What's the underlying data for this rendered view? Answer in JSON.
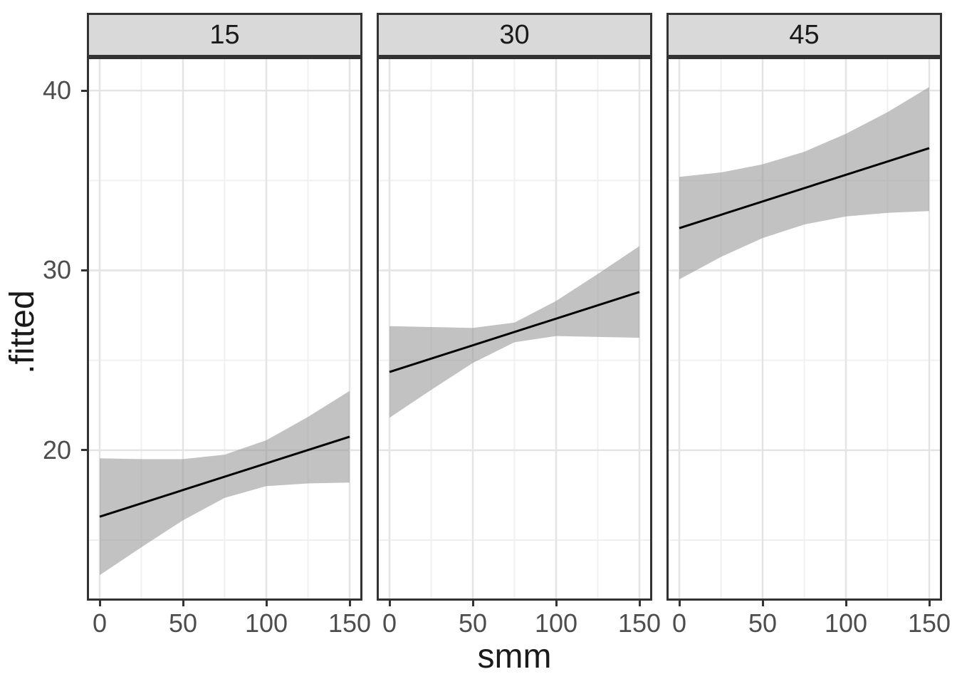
{
  "figure": {
    "background": "#ffffff"
  },
  "colors": {
    "strip_fill": "#d9d9d9",
    "strip_border": "#333333",
    "panel_border": "#333333",
    "panel_background": "#ffffff",
    "grid_major": "#e4e4e4",
    "grid_minor": "#f0f0f0",
    "ribbon": "#999999",
    "ribbon_opacity": 0.6,
    "fit_line": "#000000",
    "tick_mark": "#333333",
    "tick_label": "#4d4d4d",
    "axis_title": "#1a1a1a",
    "strip_text": "#1a1a1a"
  },
  "chart_data": {
    "type": "line",
    "title": "",
    "xlabel": "smm",
    "ylabel": ".fitted",
    "grid": true,
    "legend": "none",
    "has_confidence_band": true,
    "faceting": {
      "variable_values": [
        "15",
        "30",
        "45"
      ],
      "strip_position": "top"
    },
    "xlim": [
      0,
      150
    ],
    "ylim_display": [
      11.75,
      41.75
    ],
    "x_ticks": [
      0,
      50,
      100,
      150
    ],
    "y_ticks": [
      20,
      30,
      40
    ],
    "x_minor_gridlines": [
      25,
      75,
      125
    ],
    "y_minor_gridlines": [
      15,
      25,
      35
    ],
    "band_sample_x": [
      0,
      25,
      50,
      75,
      100,
      125,
      150
    ],
    "facets": [
      {
        "label": "15",
        "fit_line": {
          "x": [
            0,
            150
          ],
          "y": [
            16.3,
            20.75
          ]
        },
        "band_upper": [
          19.55,
          19.5,
          19.5,
          19.75,
          20.55,
          21.85,
          23.3
        ],
        "band_lower": [
          13.05,
          14.6,
          16.1,
          17.35,
          18.0,
          18.15,
          18.2
        ]
      },
      {
        "label": "30",
        "fit_line": {
          "x": [
            0,
            150
          ],
          "y": [
            24.35,
            28.8
          ]
        },
        "band_upper": [
          26.9,
          26.85,
          26.8,
          27.1,
          28.3,
          29.8,
          31.35
        ],
        "band_lower": [
          21.8,
          23.35,
          24.85,
          26.0,
          26.35,
          26.3,
          26.25
        ]
      },
      {
        "label": "45",
        "fit_line": {
          "x": [
            0,
            150
          ],
          "y": [
            32.35,
            36.8
          ]
        },
        "band_upper": [
          35.2,
          35.45,
          35.9,
          36.6,
          37.6,
          38.8,
          40.2
        ],
        "band_lower": [
          29.5,
          30.75,
          31.8,
          32.55,
          33.0,
          33.2,
          33.3
        ]
      }
    ]
  }
}
